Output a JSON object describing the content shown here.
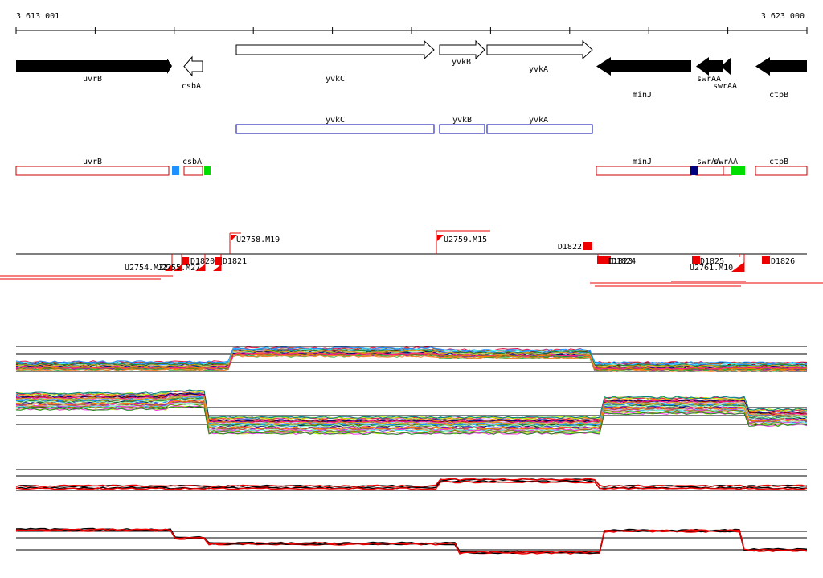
{
  "ruler": {
    "start_label": "3 613 001",
    "end_label": "3 623 000"
  },
  "genes_row1": [
    {
      "label": "uvrB",
      "style": "filled",
      "dir": "right"
    },
    {
      "label": "csbA",
      "style": "outline",
      "dir": "left"
    },
    {
      "label": "yvkC",
      "style": "outline",
      "dir": "right"
    },
    {
      "label": "yvkB",
      "style": "outline",
      "dir": "right"
    },
    {
      "label": "yvkA",
      "style": "outline",
      "dir": "right"
    },
    {
      "label": "minJ",
      "style": "filled",
      "dir": "left"
    },
    {
      "label": "swrAA",
      "style": "filled",
      "dir": "left"
    },
    {
      "label": "swrAA",
      "style": "filled",
      "dir": "left"
    },
    {
      "label": "ctpB",
      "style": "filled",
      "dir": "left"
    }
  ],
  "genes_row2": [
    {
      "label": "yvkC"
    },
    {
      "label": "yvkB"
    },
    {
      "label": "yvkA"
    }
  ],
  "genes_row3": [
    {
      "label": "uvrB"
    },
    {
      "label": "csbA"
    },
    {
      "label": "minJ"
    },
    {
      "label": "swrAA"
    },
    {
      "label": "swrAA"
    },
    {
      "label": "ctpB"
    }
  ],
  "row3_markers": [
    {
      "color": "#1e90ff"
    },
    {
      "color": "#00dd00"
    },
    {
      "color": "#000080"
    },
    {
      "color": "#00dd00"
    }
  ],
  "features_above": [
    {
      "label": "U2758.M19"
    },
    {
      "label": "U2759.M15"
    },
    {
      "label": "D1822"
    }
  ],
  "features_below": [
    {
      "label": "U2754.M32"
    },
    {
      "label": "U2755.M27"
    },
    {
      "label": "D1820"
    },
    {
      "label": "D1821"
    },
    {
      "label": "D1823"
    },
    {
      "label": "D1824"
    },
    {
      "label": "D1825"
    },
    {
      "label": "U2761.M10"
    },
    {
      "label": "D1826"
    }
  ],
  "colors": {
    "gene_row2_outline": "#0000aa",
    "gene_row3_outline": "#cc0000",
    "feature": "#ee0000",
    "profile_main": "#000000",
    "profile_alt": "#ee0000"
  }
}
